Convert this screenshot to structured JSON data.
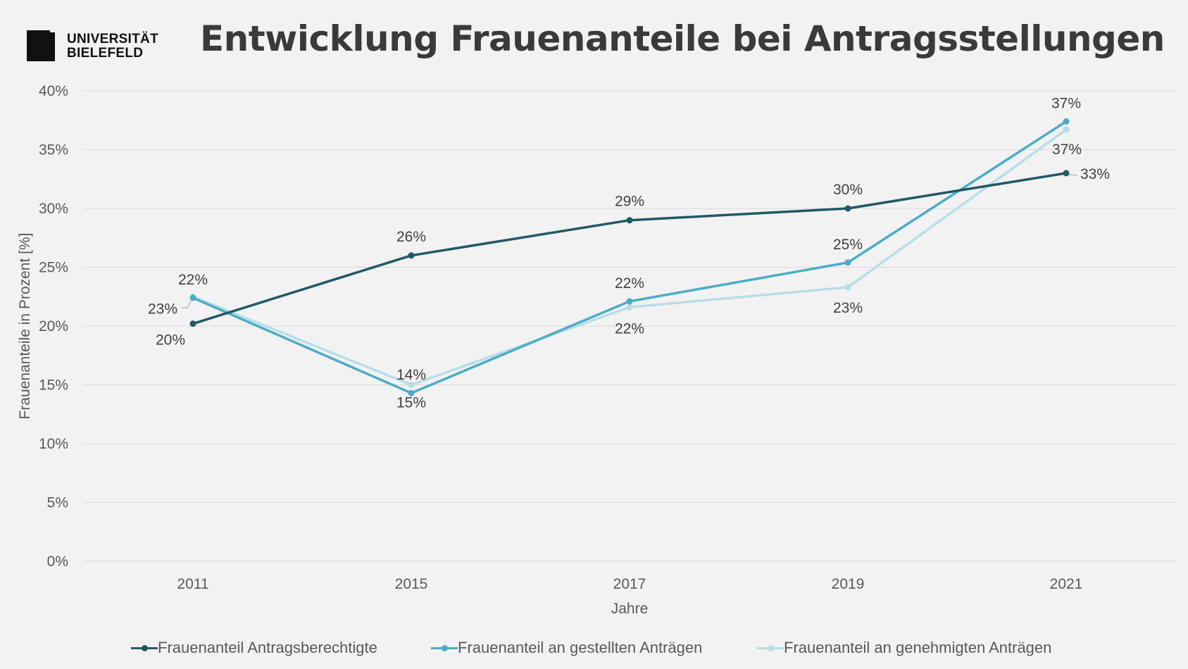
{
  "header": {
    "logo_line1": "UNIVERSITÄT",
    "logo_line2": "BIELEFELD",
    "title": "Entwicklung Frauenanteile bei Antragsstellungen"
  },
  "colors": {
    "background": "#f2f2f2",
    "grid": "#d9d9d9",
    "series": [
      "#215967",
      "#4bacc6",
      "#b7dee8"
    ]
  },
  "chart_data": {
    "type": "line",
    "title": "Entwicklung Frauenanteile bei Antragsstellungen",
    "xlabel": "Jahre",
    "ylabel": "Frauenanteile in Prozent [%]",
    "categories": [
      "2011",
      "2015",
      "2017",
      "2019",
      "2021"
    ],
    "ylim": [
      0,
      40
    ],
    "yticks": [
      "0%",
      "5%",
      "10%",
      "15%",
      "20%",
      "25%",
      "30%",
      "35%",
      "40%"
    ],
    "grid": true,
    "legend_position": "bottom",
    "series": [
      {
        "name": "Frauenanteil Antragsberechtigte",
        "values": [
          20.2,
          26.0,
          29.0,
          30.0,
          33.0
        ],
        "labels": [
          "20%",
          "26%",
          "29%",
          "30%",
          "33%"
        ]
      },
      {
        "name": "Frauenanteil an gestellten Anträgen",
        "values": [
          22.4,
          14.3,
          22.1,
          25.4,
          37.4
        ],
        "labels": [
          "22%",
          "14%",
          "22%",
          "25%",
          "37%"
        ]
      },
      {
        "name": "Frauenanteil an genehmigten Anträgen",
        "values": [
          22.5,
          15.0,
          21.6,
          23.3,
          36.7
        ],
        "labels": [
          "23%",
          "15%",
          "22%",
          "23%",
          "37%"
        ]
      }
    ]
  }
}
